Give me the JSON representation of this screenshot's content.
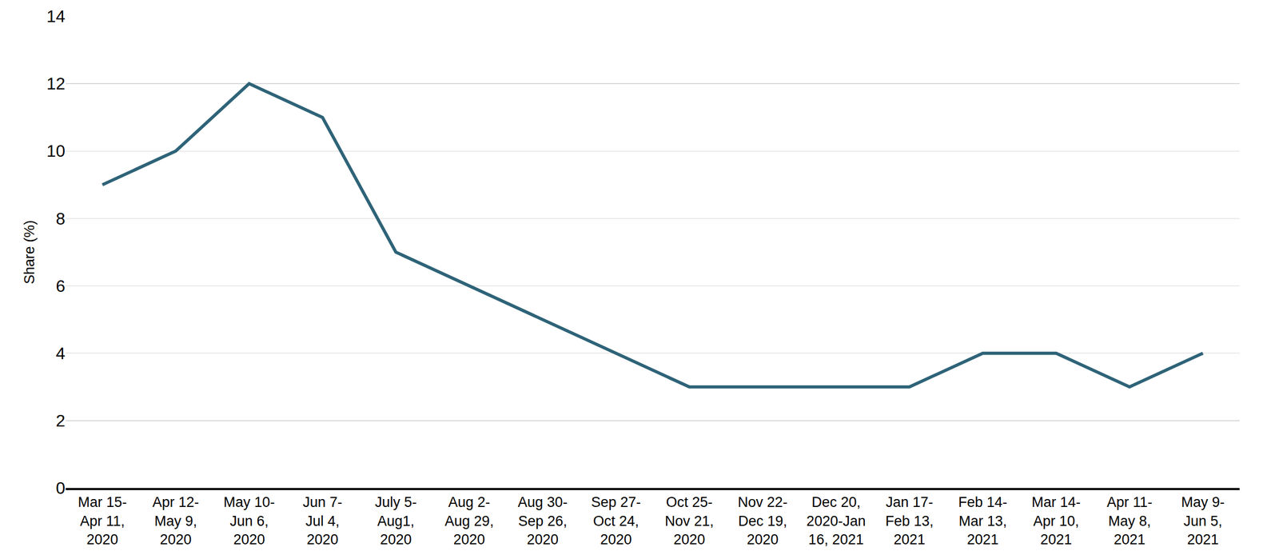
{
  "chart_data": {
    "type": "line",
    "y_label": "Share (%)",
    "categories": [
      "Mar 15-\nApr 11,\n2020",
      "Apr 12-\nMay 9,\n2020",
      "May 10-\nJun 6,\n2020",
      "Jun 7-\nJul 4,\n2020",
      "July 5-\nAug1,\n2020",
      "Aug 2-\nAug 29,\n2020",
      "Aug 30-\nSep 26,\n2020",
      "Sep 27-\nOct 24,\n2020",
      "Oct 25-\nNov 21,\n2020",
      "Nov 22-\nDec 19,\n2020",
      "Dec 20,\n2020-Jan\n16, 2021",
      "Jan 17-\nFeb 13,\n2021",
      "Feb 14-\nMar 13,\n2021",
      "Mar 14-\nApr 10,\n2021",
      "Apr 11-\nMay 8,\n2021",
      "May 9-\nJun 5,\n2021"
    ],
    "values": [
      9,
      10,
      12,
      11,
      7,
      6,
      5,
      4,
      3,
      3,
      3,
      3,
      4,
      4,
      3,
      4
    ],
    "color": "#2e6378",
    "ylim": [
      0,
      14
    ],
    "yticks": [
      0,
      2,
      4,
      6,
      8,
      10,
      12,
      14
    ],
    "grid": true
  }
}
